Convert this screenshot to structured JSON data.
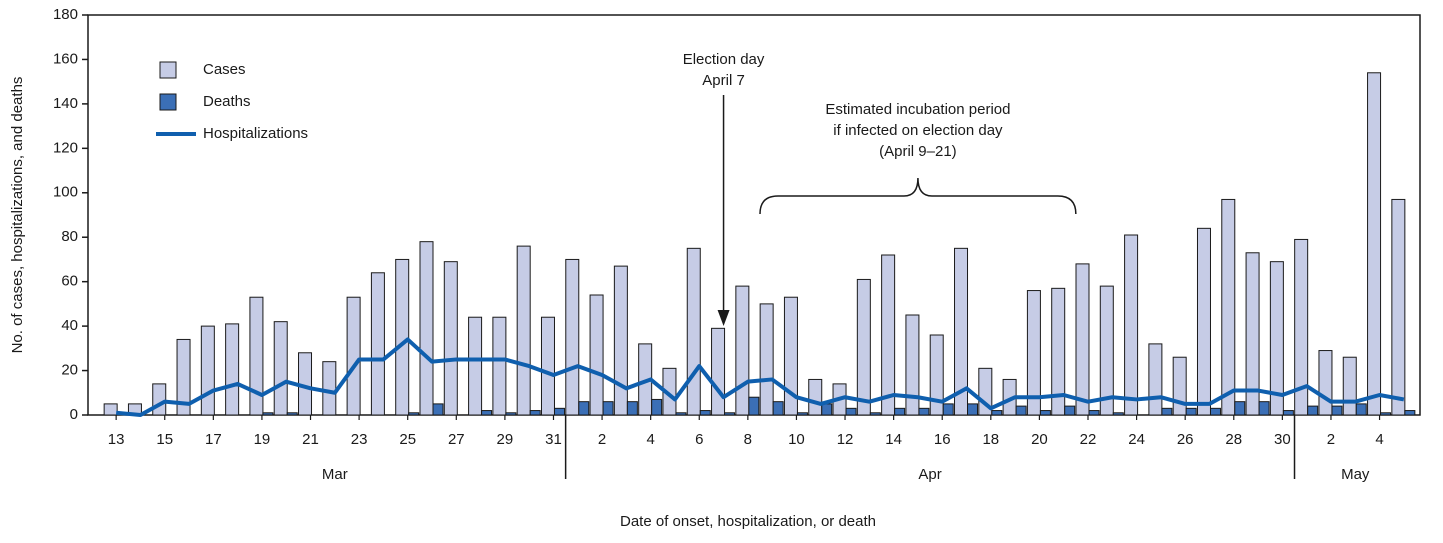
{
  "chart_data": {
    "type": "bar",
    "x_label": "Date of onset, hospitalization, or death",
    "y_label": "No. of cases, hospitalizations, and deaths",
    "categories": [
      "13",
      null,
      "15",
      null,
      "17",
      null,
      "19",
      null,
      "21",
      null,
      "23",
      null,
      "25",
      null,
      "27",
      null,
      "29",
      null,
      "31",
      null,
      "2",
      null,
      "4",
      null,
      "6",
      null,
      "8",
      null,
      "10",
      null,
      "12",
      null,
      "14",
      null,
      "16",
      null,
      "18",
      null,
      "20",
      null,
      "22",
      null,
      "24",
      null,
      "26",
      null,
      "28",
      null,
      "30",
      null,
      "2",
      null,
      "4",
      null
    ],
    "month_groups": [
      {
        "label": "Mar",
        "size": 19
      },
      {
        "label": "Apr",
        "size": 30
      },
      {
        "label": "May",
        "size": 5
      }
    ],
    "series": [
      {
        "name": "Cases",
        "type": "bar",
        "color": "#c6cce6",
        "values": [
          5,
          5,
          14,
          34,
          40,
          41,
          53,
          42,
          28,
          24,
          53,
          64,
          70,
          78,
          69,
          44,
          44,
          76,
          44,
          70,
          54,
          67,
          32,
          21,
          75,
          39,
          58,
          50,
          53,
          16,
          14,
          61,
          72,
          45,
          36,
          75,
          21,
          16,
          56,
          57,
          68,
          58,
          81,
          32,
          26,
          84,
          97,
          73,
          69,
          79,
          29,
          26,
          154,
          97
        ]
      },
      {
        "name": "Deaths",
        "type": "bar",
        "color": "#3b6fb6",
        "values": [
          0,
          0,
          0,
          0,
          0,
          0,
          1,
          1,
          0,
          0,
          0,
          0,
          1,
          5,
          0,
          2,
          1,
          2,
          3,
          6,
          6,
          6,
          7,
          1,
          2,
          1,
          8,
          6,
          1,
          5,
          3,
          1,
          3,
          3,
          5,
          5,
          2,
          4,
          2,
          4,
          2,
          1,
          0,
          3,
          3,
          3,
          6,
          6,
          2,
          4,
          4,
          5,
          1,
          2
        ]
      },
      {
        "name": "Hospitalizations",
        "type": "line",
        "color": "#0f5fae",
        "values": [
          1,
          0,
          6,
          5,
          11,
          14,
          9,
          15,
          12,
          10,
          25,
          25,
          34,
          24,
          25,
          25,
          25,
          22,
          18,
          22,
          18,
          12,
          16,
          7,
          22,
          8,
          15,
          16,
          8,
          5,
          8,
          6,
          9,
          8,
          6,
          12,
          3,
          8,
          8,
          9,
          6,
          8,
          7,
          8,
          5,
          5,
          11,
          11,
          9,
          13,
          6,
          6,
          9,
          7
        ]
      }
    ],
    "ylim": [
      0,
      180
    ],
    "yticks": [
      0,
      20,
      40,
      60,
      80,
      100,
      120,
      140,
      160,
      180
    ],
    "legend": "top-left",
    "annotations": [
      {
        "lines": [
          "Election day",
          "April 7"
        ]
      },
      {
        "lines": [
          "Estimated incubation period",
          "if infected on election day",
          "(April 9–21)"
        ]
      }
    ]
  }
}
